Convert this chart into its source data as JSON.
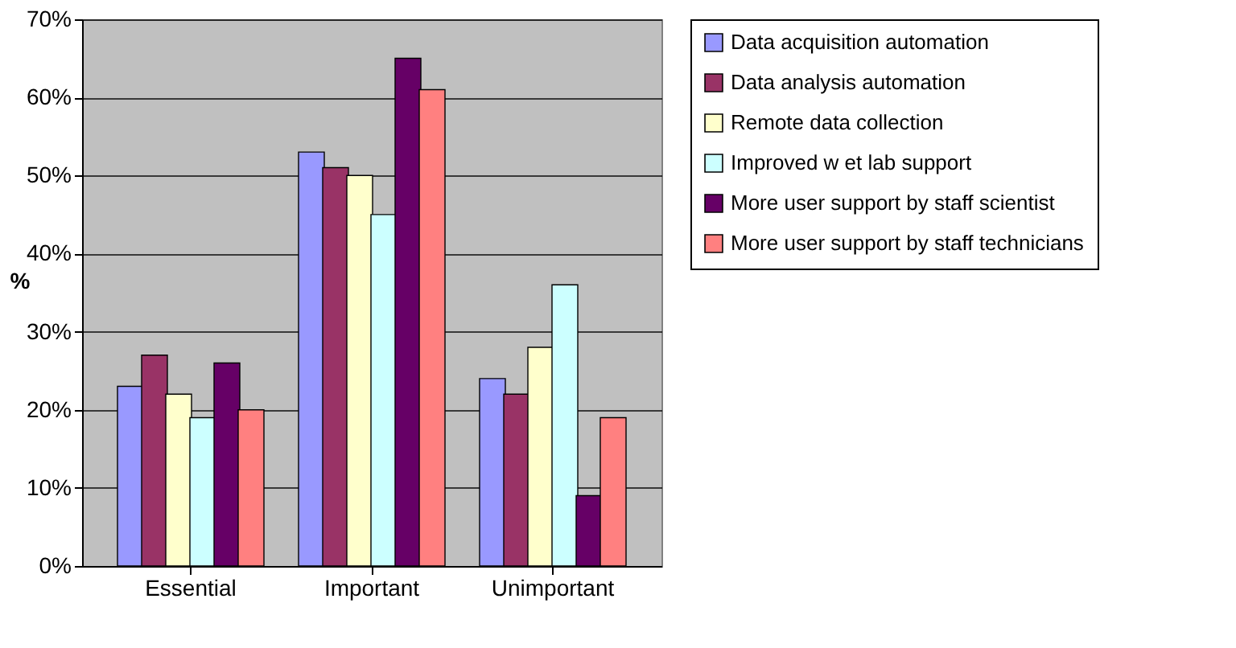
{
  "chart_data": {
    "type": "bar",
    "ylabel": "%",
    "categories": [
      "Essential",
      "Important",
      "Unimportant"
    ],
    "series": [
      {
        "name": "Data acquisition automation",
        "color": "#9999ff",
        "values": [
          23,
          53,
          24
        ]
      },
      {
        "name": "Data analysis automation",
        "color": "#993366",
        "values": [
          27,
          51,
          22
        ]
      },
      {
        "name": "Remote data collection",
        "color": "#ffffcc",
        "values": [
          22,
          50,
          28
        ]
      },
      {
        "name": "Improved w et lab support",
        "color": "#ccffff",
        "values": [
          19,
          45,
          36
        ]
      },
      {
        "name": "More user support by staff scientist",
        "color": "#660066",
        "values": [
          26,
          65,
          9
        ]
      },
      {
        "name": "More user support by staff technicians",
        "color": "#ff8080",
        "values": [
          20,
          61,
          19
        ]
      }
    ],
    "ylim": [
      0,
      70
    ],
    "yticks": [
      {
        "value": 0,
        "label": "0%"
      },
      {
        "value": 10,
        "label": "10%"
      },
      {
        "value": 20,
        "label": "20%"
      },
      {
        "value": 30,
        "label": "30%"
      },
      {
        "value": 40,
        "label": "40%"
      },
      {
        "value": 50,
        "label": "50%"
      },
      {
        "value": 60,
        "label": "60%"
      },
      {
        "value": 70,
        "label": "70%"
      }
    ],
    "grid": "y",
    "legend": "right"
  }
}
